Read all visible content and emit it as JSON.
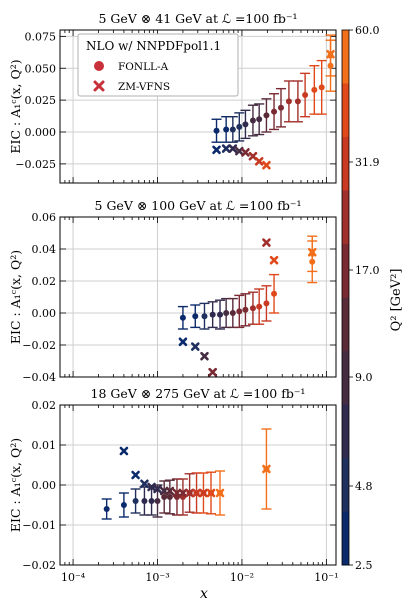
{
  "figure": {
    "xlabel": "x",
    "colorbar": {
      "label": "Q² [GeV²]",
      "ticks": [
        "2.5",
        "4.8",
        "9.0",
        "17.0",
        "31.9",
        "60.0"
      ],
      "colors": [
        "#0b2a6b",
        "#1f2f5e",
        "#312a4f",
        "#462c43",
        "#5a2a39",
        "#7a2a32",
        "#a0302c",
        "#c83a22",
        "#e04a1a",
        "#f2701b"
      ]
    },
    "legend": {
      "title": "NLO w/ NNPDFpol1.1",
      "entries": [
        {
          "label": "FONLL-A",
          "marker": "circle"
        },
        {
          "label": "ZM-VFNS",
          "marker": "x"
        }
      ]
    }
  },
  "chart_data": [
    {
      "type": "scatter",
      "title": "5 GeV ⊗ 41 GeV at ℒ =100 fb⁻¹",
      "ylabel": "EIC : A₁ᶜ(x, Q²)",
      "xscale": "log",
      "xlim": [
        7e-05,
        0.13
      ],
      "ylim": [
        -0.04,
        0.08
      ],
      "yticks": [
        "0.075",
        "0.050",
        "0.025",
        "0.000",
        "−0.025"
      ],
      "ytick_values": [
        0.075,
        0.05,
        0.025,
        0.0,
        -0.025
      ],
      "grid": true,
      "series": [
        {
          "marker": "circle",
          "x": [
            0.005,
            0.0065,
            0.0078,
            0.0093,
            0.011,
            0.0135,
            0.016,
            0.0195,
            0.024,
            0.029,
            0.036,
            0.046,
            0.056,
            0.072,
            0.088,
            0.112,
            0.112
          ],
          "y": [
            0.001,
            0.002,
            0.002,
            0.004,
            0.006,
            0.009,
            0.01,
            0.013,
            0.016,
            0.019,
            0.024,
            0.024,
            0.029,
            0.033,
            0.035,
            0.052,
            0.06
          ],
          "err": [
            0.009,
            0.01,
            0.01,
            0.011,
            0.011,
            0.012,
            0.012,
            0.013,
            0.014,
            0.015,
            0.016,
            0.016,
            0.017,
            0.019,
            0.021,
            0.02,
            0.016
          ]
        },
        {
          "marker": "x",
          "x": [
            0.005,
            0.0065,
            0.0078,
            0.0093,
            0.011,
            0.0135,
            0.016,
            0.0195,
            0.112
          ],
          "y": [
            -0.014,
            -0.013,
            -0.013,
            -0.015,
            -0.016,
            -0.019,
            -0.023,
            -0.026,
            0.061
          ],
          "err": [
            0,
            0,
            0,
            0,
            0,
            0,
            0,
            0,
            0
          ]
        }
      ]
    },
    {
      "type": "scatter",
      "title": "5 GeV ⊗ 100 GeV at ℒ =100 fb⁻¹",
      "ylabel": "EIC : A₁ᶜ(x, Q²)",
      "xscale": "log",
      "xlim": [
        7e-05,
        0.13
      ],
      "ylim": [
        -0.04,
        0.06
      ],
      "yticks": [
        "0.06",
        "0.04",
        "0.02",
        "0.00",
        "−0.02",
        "−0.04"
      ],
      "ytick_values": [
        0.06,
        0.04,
        0.02,
        0.0,
        -0.02,
        -0.04
      ],
      "grid": true,
      "series": [
        {
          "marker": "circle",
          "x": [
            0.002,
            0.0028,
            0.0036,
            0.0045,
            0.0055,
            0.0065,
            0.0078,
            0.0093,
            0.011,
            0.0135,
            0.016,
            0.0195,
            0.024,
            0.068,
            0.068
          ],
          "y": [
            -0.003,
            -0.002,
            -0.002,
            -0.001,
            -0.001,
            0.0,
            0.0,
            0.001,
            0.002,
            0.003,
            0.004,
            0.006,
            0.012,
            0.032,
            0.037
          ],
          "err": [
            0.007,
            0.007,
            0.008,
            0.008,
            0.009,
            0.009,
            0.009,
            0.01,
            0.01,
            0.01,
            0.011,
            0.011,
            0.012,
            0.013,
            0.011
          ]
        },
        {
          "marker": "x",
          "x": [
            0.002,
            0.0028,
            0.0036,
            0.0045,
            0.0195,
            0.024,
            0.068
          ],
          "y": [
            -0.018,
            -0.021,
            -0.027,
            -0.037,
            0.044,
            0.033,
            0.038
          ],
          "err": [
            0,
            0,
            0,
            0,
            0,
            0,
            0
          ]
        }
      ]
    },
    {
      "type": "scatter",
      "title": "18 GeV ⊗ 275 GeV at ℒ =100 fb⁻¹",
      "ylabel": "EIC : A₁ᶜ(x, Q²)",
      "xscale": "log",
      "xlim": [
        7e-05,
        0.13
      ],
      "ylim": [
        -0.02,
        0.02
      ],
      "yticks": [
        "0.02",
        "0.01",
        "0.00",
        "−0.01",
        "−0.02"
      ],
      "ytick_values": [
        0.02,
        0.01,
        0.0,
        -0.01,
        -0.02
      ],
      "xticks": [
        "10⁻⁴",
        "10⁻³",
        "10⁻²",
        "10⁻¹"
      ],
      "xtick_values": [
        0.0001,
        0.001,
        0.01,
        0.1
      ],
      "grid": true,
      "series": [
        {
          "marker": "circle",
          "x": [
            0.00025,
            0.0004,
            0.00055,
            0.0007,
            0.00085,
            0.001,
            0.0012,
            0.0014,
            0.0017,
            0.002,
            0.0024,
            0.0029,
            0.0035,
            0.0043,
            0.0055,
            0.0195
          ],
          "y": [
            -0.006,
            -0.005,
            -0.004,
            -0.004,
            -0.004,
            -0.004,
            -0.003,
            -0.003,
            -0.003,
            -0.003,
            -0.002,
            -0.002,
            -0.002,
            -0.002,
            -0.002,
            0.004
          ],
          "err": [
            0.0025,
            0.003,
            0.003,
            0.0035,
            0.0035,
            0.004,
            0.004,
            0.0042,
            0.0045,
            0.0045,
            0.0048,
            0.005,
            0.005,
            0.0052,
            0.0055,
            0.01
          ]
        },
        {
          "marker": "x",
          "x": [
            0.0004,
            0.00055,
            0.0007,
            0.00085,
            0.001,
            0.0012,
            0.0014,
            0.0017,
            0.002,
            0.0024,
            0.0029,
            0.0035,
            0.0043,
            0.0055,
            0.0195
          ],
          "y": [
            0.0085,
            0.0025,
            0.0003,
            -0.0005,
            -0.001,
            -0.0015,
            -0.0015,
            -0.002,
            -0.002,
            -0.002,
            -0.002,
            -0.002,
            -0.002,
            -0.002,
            0.004
          ],
          "err": [
            0,
            0,
            0,
            0,
            0,
            0,
            0,
            0,
            0,
            0,
            0,
            0,
            0,
            0,
            0
          ]
        }
      ]
    }
  ]
}
